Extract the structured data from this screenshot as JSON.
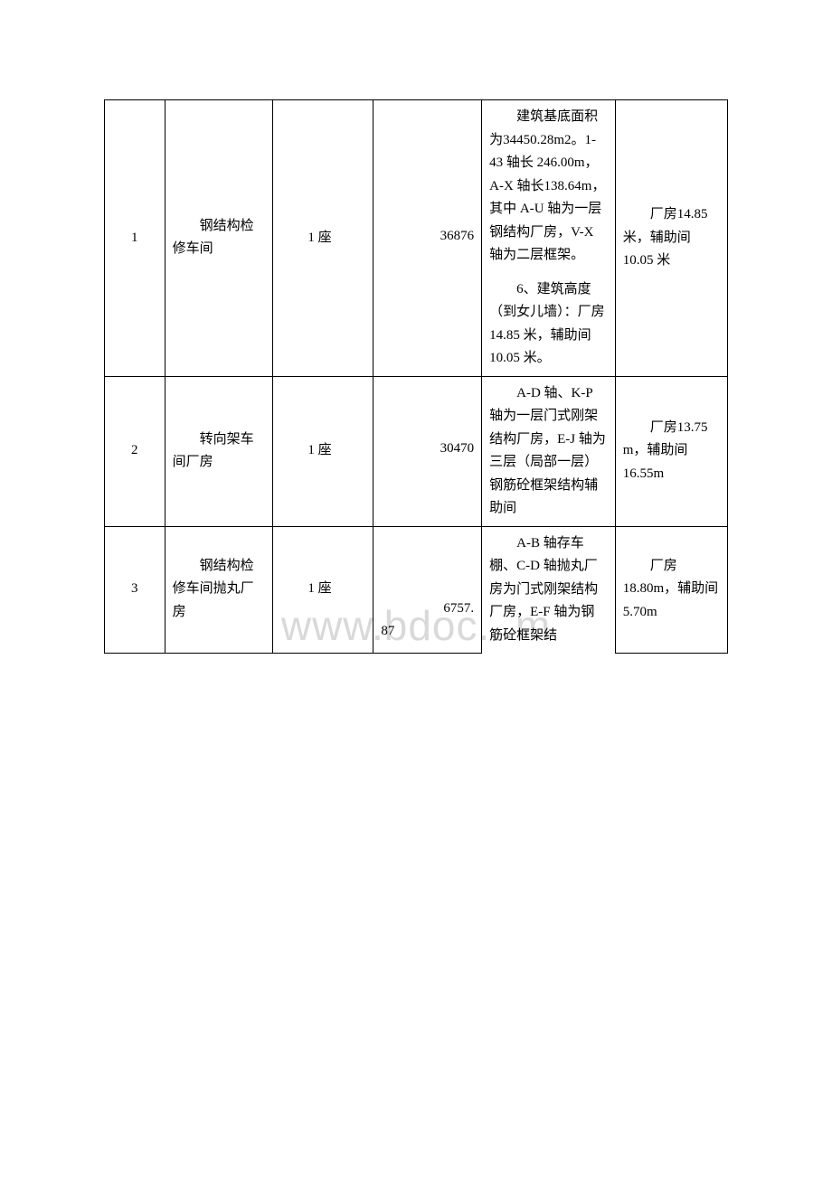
{
  "watermark": "www.bdoc...m",
  "table": {
    "columns": {
      "widths": [
        "60px",
        "108px",
        "100px",
        "108px",
        "133px",
        "112px"
      ]
    },
    "rows": [
      {
        "num": "1",
        "name": "钢结构检修车间",
        "qty": "1 座",
        "area": "36876",
        "desc_p1": "建筑基底面积为34450.28m2。1-43 轴长 246.00m，A-X 轴长138.64m，其中 A-U 轴为一层钢结构厂房，V-X 轴为二层框架。",
        "desc_p2": "6、建筑高度（到女儿墙）：厂房14.85 米，辅助间10.05 米。",
        "height": "厂房14.85 米，辅助间10.05 米"
      },
      {
        "num": "2",
        "name": "转向架车间厂房",
        "qty": "1 座",
        "area": "30470",
        "desc": "A-D 轴、K-P 轴为一层门式刚架结构厂房，E-J 轴为三层（局部一层）钢筋砼框架结构辅助间",
        "height": "厂房13.75 m，辅助间16.55m"
      },
      {
        "num": "3",
        "name": "钢结构检修车间抛丸厂房",
        "qty": "1 座",
        "area_prefix": "87",
        "area_num": "6757.",
        "desc": "A-B 轴存车棚、C-D 轴抛丸厂房为门式刚架结构厂房，E-F 轴为钢筋砼框架结",
        "height": "厂房18.80m，辅助间5.70m"
      }
    ]
  },
  "styling": {
    "border_color": "#000000",
    "text_color": "#000000",
    "background_color": "#ffffff",
    "watermark_color": "#d9d9d9",
    "font_size": 15,
    "watermark_font_size": 46
  }
}
